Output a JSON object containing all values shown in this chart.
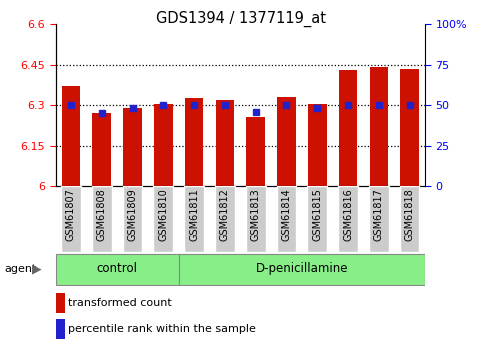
{
  "title": "GDS1394 / 1377119_at",
  "samples": [
    "GSM61807",
    "GSM61808",
    "GSM61809",
    "GSM61810",
    "GSM61811",
    "GSM61812",
    "GSM61813",
    "GSM61814",
    "GSM61815",
    "GSM61816",
    "GSM61817",
    "GSM61818"
  ],
  "transformed_count": [
    6.37,
    6.27,
    6.29,
    6.305,
    6.325,
    6.32,
    6.255,
    6.33,
    6.305,
    6.43,
    6.44,
    6.435
  ],
  "percentile_rank": [
    50,
    45,
    48,
    50,
    50,
    50,
    46,
    50,
    48,
    50,
    50,
    50
  ],
  "groups": [
    {
      "label": "control",
      "start": 0,
      "end": 4
    },
    {
      "label": "D-penicillamine",
      "start": 4,
      "end": 12
    }
  ],
  "agent_label": "agent",
  "bar_color": "#cc1100",
  "dot_color": "#2222cc",
  "ylim_left": [
    6.0,
    6.6
  ],
  "ylim_right": [
    0,
    100
  ],
  "yticks_left": [
    6.0,
    6.15,
    6.3,
    6.45,
    6.6
  ],
  "ytick_labels_left": [
    "6",
    "6.15",
    "6.3",
    "6.45",
    "6.6"
  ],
  "yticks_right": [
    0,
    25,
    50,
    75,
    100
  ],
  "ytick_labels_right": [
    "0",
    "25",
    "50",
    "75",
    "100%"
  ],
  "hlines": [
    6.15,
    6.3,
    6.45
  ],
  "group_bg_color": "#88ee88",
  "tick_bg_color": "#cccccc",
  "legend_red_label": "transformed count",
  "legend_blue_label": "percentile rank within the sample",
  "fig_bg": "#ffffff"
}
